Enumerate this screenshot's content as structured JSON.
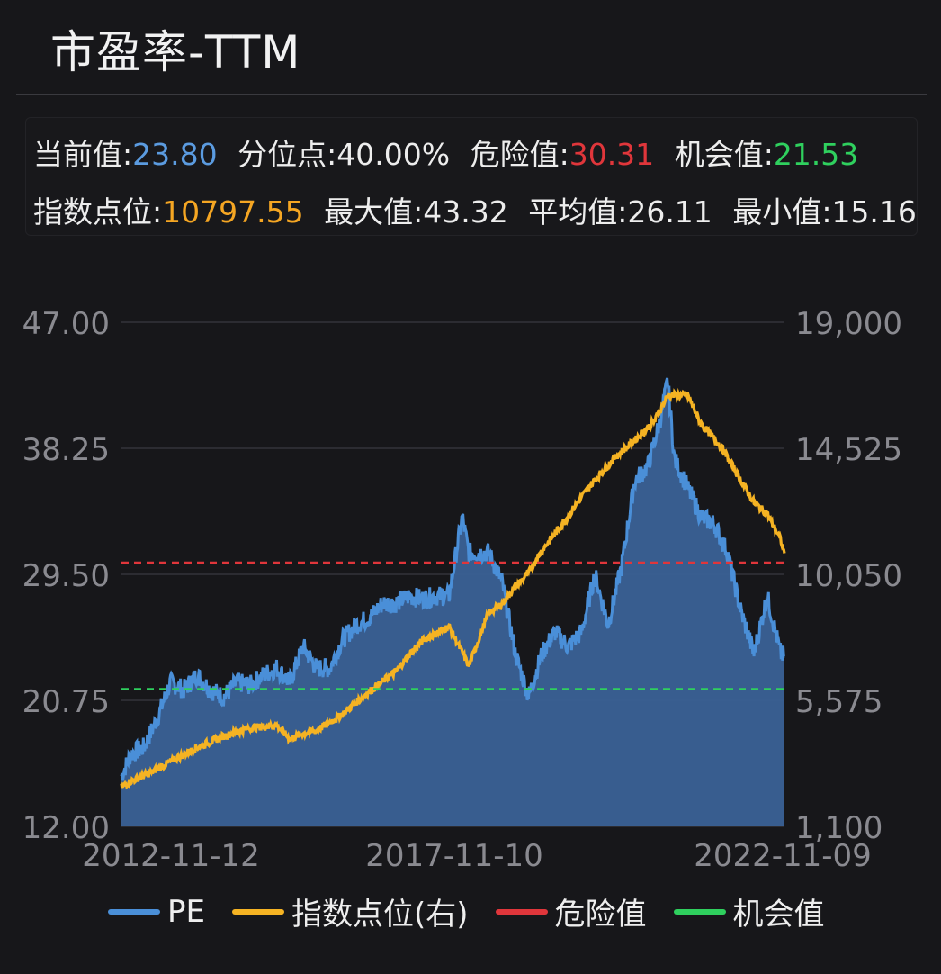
{
  "title": "市盈率-TTM",
  "stats": {
    "current_label": "当前值:",
    "current_value": "23.80",
    "percentile_label": "分位点:",
    "percentile_value": "40.00%",
    "danger_label": "危险值:",
    "danger_value": "30.31",
    "chance_label": "机会值:",
    "chance_value": "21.53",
    "index_label": "指数点位:",
    "index_value": "10797.55",
    "max_label": "最大值:",
    "max_value": "43.32",
    "avg_label": "平均值:",
    "avg_value": "26.11",
    "min_label": "最小值:",
    "min_value": "15.16"
  },
  "colors": {
    "pe": "#4a8fd8",
    "pe_fill": "#3a6196",
    "index": "#f5b323",
    "danger": "#e0363b",
    "chance": "#2fd05e",
    "grid": "#34343a",
    "axis_text": "#8a8a90"
  },
  "chart_data": {
    "type": "area",
    "x_tick_labels": [
      "2012-11-12",
      "2017-11-10",
      "2022-11-09"
    ],
    "left_axis": {
      "ylim": [
        12.0,
        47.0
      ],
      "tick_labels": [
        "47.00",
        "38.25",
        "29.50",
        "20.75",
        "12.00"
      ]
    },
    "right_axis": {
      "ylim": [
        1100,
        19000
      ],
      "tick_labels": [
        "19,000",
        "14,525",
        "10,050",
        "5,575",
        "1,100"
      ]
    },
    "danger_line": 30.31,
    "chance_line": 21.53,
    "series": [
      {
        "name": "PE",
        "axis": "left",
        "x": [
          2012.86,
          2013.0,
          2013.2,
          2013.4,
          2013.6,
          2013.8,
          2014.0,
          2014.2,
          2014.4,
          2014.6,
          2014.8,
          2015.0,
          2015.2,
          2015.4,
          2015.6,
          2015.8,
          2016.0,
          2016.2,
          2016.4,
          2016.6,
          2016.8,
          2017.0,
          2017.2,
          2017.4,
          2017.6,
          2017.8,
          2018.0,
          2018.1,
          2018.2,
          2018.4,
          2018.6,
          2018.8,
          2019.0,
          2019.2,
          2019.4,
          2019.6,
          2019.8,
          2020.0,
          2020.2,
          2020.4,
          2020.6,
          2020.8,
          2021.0,
          2021.1,
          2021.2,
          2021.4,
          2021.6,
          2021.8,
          2022.0,
          2022.2,
          2022.4,
          2022.6,
          2022.8,
          2022.86
        ],
        "values": [
          15.5,
          17.0,
          17.5,
          19.5,
          22.0,
          21.5,
          22.5,
          21.5,
          21.0,
          22.0,
          21.8,
          22.5,
          23.0,
          22.0,
          24.5,
          23.0,
          23.0,
          25.0,
          26.0,
          26.5,
          27.5,
          27.5,
          28.0,
          27.8,
          28.0,
          28.0,
          33.5,
          31.0,
          31.0,
          31.0,
          29.0,
          24.0,
          21.0,
          24.0,
          25.5,
          24.5,
          25.5,
          29.5,
          26.0,
          30.0,
          36.0,
          37.0,
          40.5,
          43.0,
          37.5,
          35.5,
          33.5,
          33.0,
          31.0,
          27.0,
          24.0,
          28.0,
          24.0,
          23.8
        ]
      },
      {
        "name": "指数点位(右)",
        "axis": "right",
        "x": [
          2012.86,
          2013.0,
          2013.3,
          2013.6,
          2014.0,
          2014.4,
          2014.8,
          2015.2,
          2015.4,
          2015.6,
          2015.8,
          2016.2,
          2016.6,
          2017.0,
          2017.2,
          2017.4,
          2017.8,
          2018.1,
          2018.4,
          2018.6,
          2018.8,
          2019.0,
          2019.2,
          2019.5,
          2019.8,
          2020.0,
          2020.3,
          2020.6,
          2020.9,
          2021.1,
          2021.4,
          2021.6,
          2021.9,
          2022.1,
          2022.4,
          2022.6,
          2022.8,
          2022.86
        ],
        "values": [
          2500,
          2700,
          3000,
          3400,
          3900,
          4300,
          4600,
          4700,
          4200,
          4400,
          4500,
          5100,
          5900,
          6600,
          7200,
          7700,
          8200,
          6800,
          8700,
          9000,
          9600,
          10100,
          10900,
          11800,
          12800,
          13400,
          14200,
          14800,
          15500,
          16400,
          16400,
          15400,
          14600,
          13800,
          12600,
          12200,
          11300,
          10797.55
        ]
      }
    ]
  },
  "legend": {
    "pe": "PE",
    "index": "指数点位(右)",
    "danger": "危险值",
    "chance": "机会值"
  }
}
